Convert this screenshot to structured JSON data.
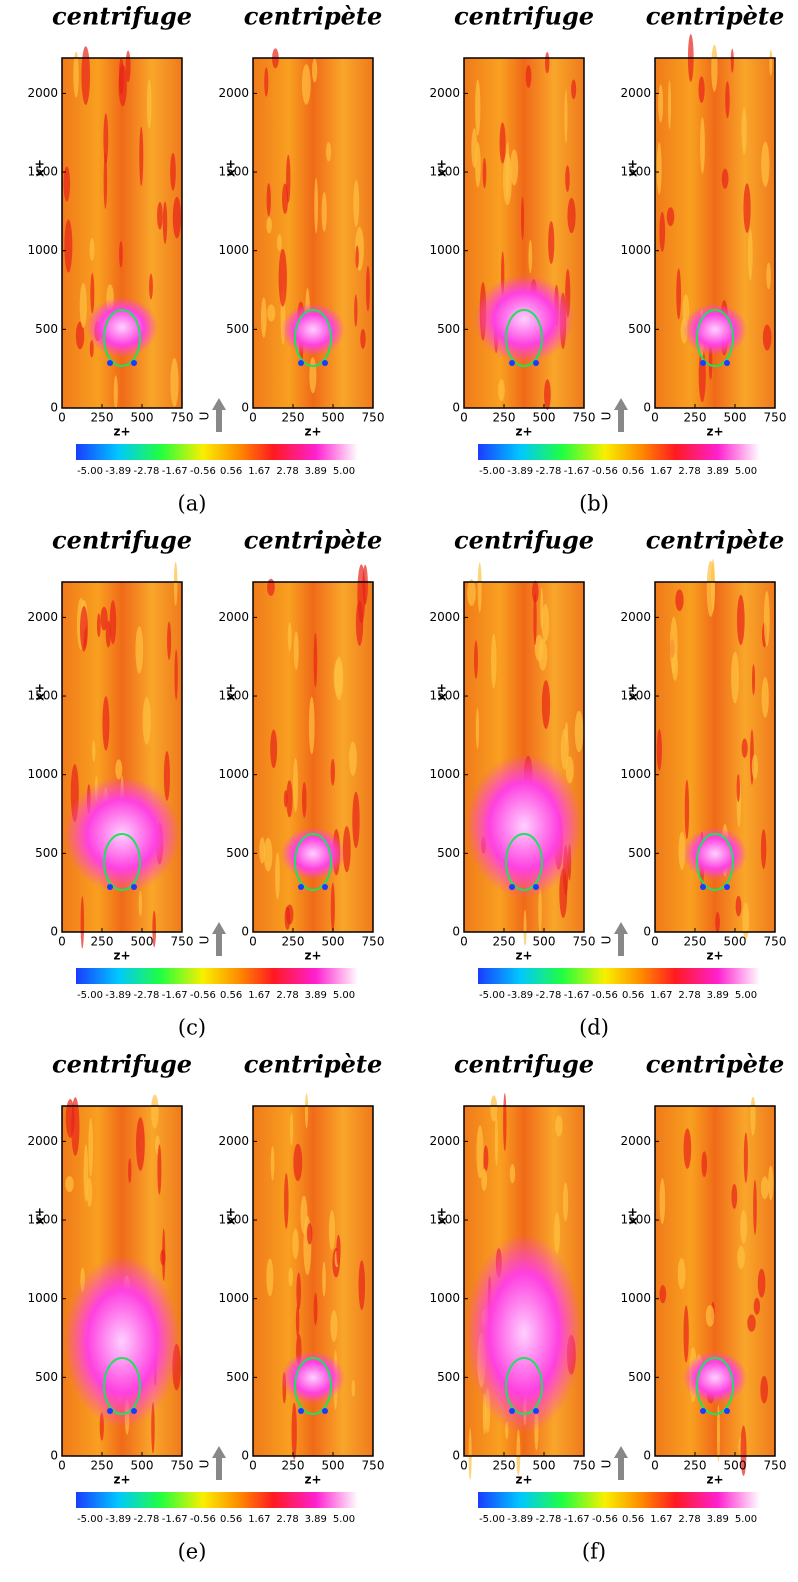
{
  "panels": [
    {
      "label": "(a)",
      "plots": [
        {
          "title": "centrifuge"
        },
        {
          "title": "centripète"
        }
      ]
    },
    {
      "label": "(b)",
      "plots": [
        {
          "title": "centrifuge"
        },
        {
          "title": "centripète"
        }
      ]
    },
    {
      "label": "(c)",
      "plots": [
        {
          "title": "centrifuge"
        },
        {
          "title": "centripète"
        }
      ]
    },
    {
      "label": "(d)",
      "plots": [
        {
          "title": "centrifuge"
        },
        {
          "title": "centripète"
        }
      ]
    },
    {
      "label": "(e)",
      "plots": [
        {
          "title": "centrifuge"
        },
        {
          "title": "centripète"
        }
      ]
    },
    {
      "label": "(f)",
      "plots": [
        {
          "title": "centrifuge"
        },
        {
          "title": "centripète"
        }
      ]
    }
  ],
  "axes": {
    "x_label": "z+",
    "y_label": "x+",
    "x_ticks": [
      "0",
      "250",
      "500",
      "750"
    ],
    "y_ticks": [
      "0",
      "500",
      "1000",
      "1500",
      "2000"
    ]
  },
  "velocity_label": "U",
  "colorbar_labels": [
    "-5.00",
    "-3.89",
    "-2.78",
    "-1.67",
    "-0.56",
    "0.56",
    "1.67",
    "2.78",
    "3.89",
    "5.00"
  ]
}
